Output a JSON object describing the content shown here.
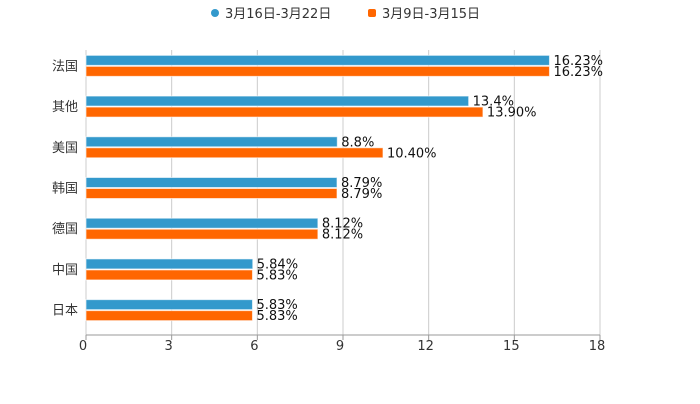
{
  "chart_data": {
    "type": "bar",
    "orientation": "horizontal",
    "title": "",
    "xlabel": "",
    "ylabel": "",
    "xlim": [
      0,
      18
    ],
    "x_ticks": [
      "0",
      "3",
      "6",
      "9",
      "12",
      "15",
      "18"
    ],
    "grid": true,
    "legend_position": "top-center",
    "categories": [
      "法国",
      "其他",
      "美国",
      "韩国",
      "德国",
      "中国",
      "日本"
    ],
    "series": [
      {
        "name": "3月16日-3月22日",
        "color": "#3399cc",
        "values": [
          16.23,
          13.4,
          8.8,
          8.79,
          8.12,
          5.84,
          5.83
        ],
        "labels": [
          "16.23%",
          "13.4%",
          "8.8%",
          "8.79%",
          "8.12%",
          "5.84%",
          "5.83%"
        ]
      },
      {
        "name": "3月9日-3月15日",
        "color": "#ff6600",
        "values": [
          16.23,
          13.9,
          10.4,
          8.79,
          8.12,
          5.83,
          5.83
        ],
        "labels": [
          "16.23%",
          "13.90%",
          "10.40%",
          "8.79%",
          "8.12%",
          "5.83%",
          "5.83%"
        ]
      }
    ]
  }
}
